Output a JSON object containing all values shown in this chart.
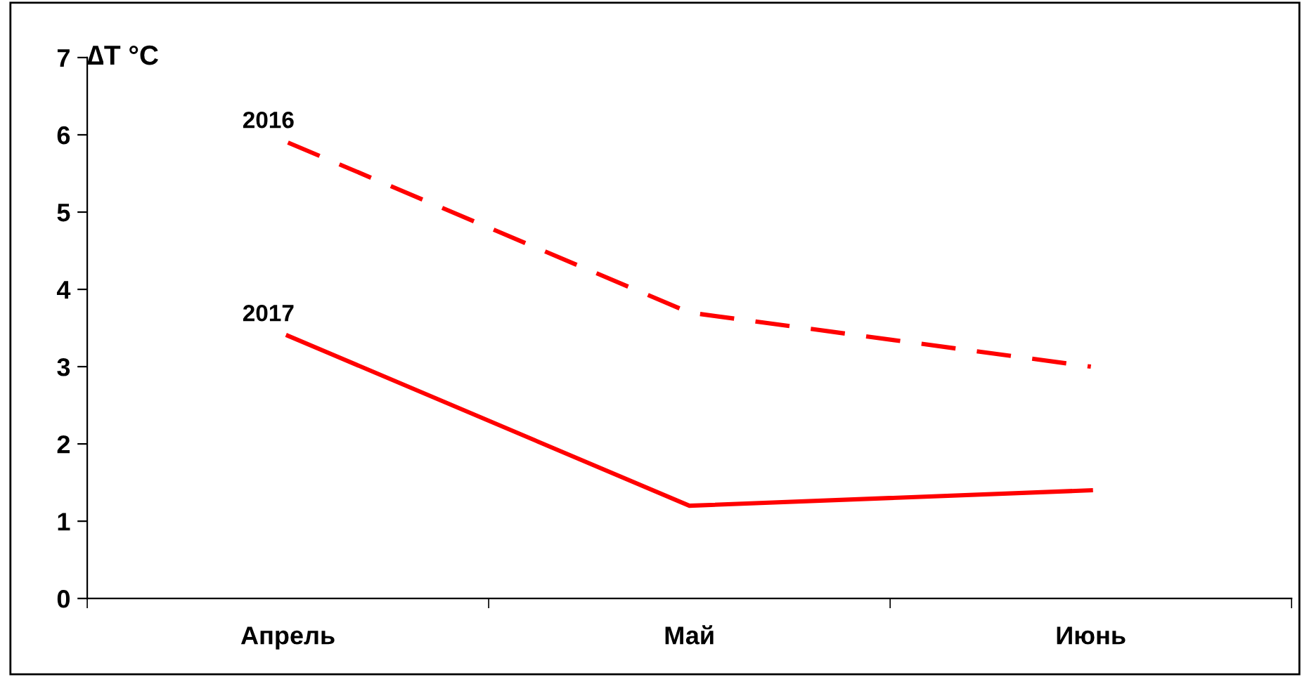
{
  "chart_data": {
    "type": "line",
    "ylabel": "∆T °C",
    "categories": [
      "Апрель",
      "Май",
      "Июнь"
    ],
    "series": [
      {
        "name": "2016",
        "color": "#ff0000",
        "line_style": "dashed",
        "values": [
          5.9,
          3.7,
          3.0
        ]
      },
      {
        "name": "2017",
        "color": "#ff0000",
        "line_style": "solid",
        "values": [
          3.4,
          1.2,
          1.4
        ]
      }
    ],
    "ylim": [
      0,
      7
    ],
    "yticks": [
      0,
      1,
      2,
      3,
      4,
      5,
      6,
      7
    ],
    "grid": false,
    "legend": false,
    "marker": "none"
  }
}
